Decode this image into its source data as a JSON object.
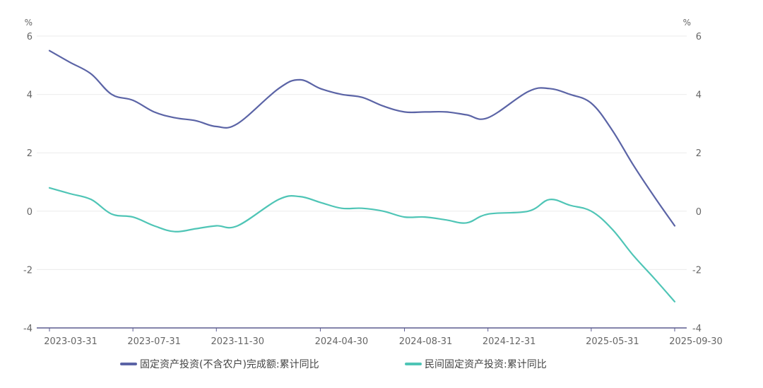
{
  "chart_data": {
    "type": "line",
    "y_unit_left": "%",
    "y_unit_right": "%",
    "ylim": [
      -4,
      6
    ],
    "yticks": [
      -4,
      -2,
      0,
      2,
      4,
      6
    ],
    "x_tick_labels": [
      "2023-03-31",
      "2023-07-31",
      "2023-11-30",
      "2024-04-30",
      "2024-08-31",
      "2024-12-31",
      "2025-05-31",
      "2025-09-30"
    ],
    "x": [
      "2023-03-31",
      "2023-04-30",
      "2023-05-31",
      "2023-06-30",
      "2023-07-31",
      "2023-08-31",
      "2023-09-30",
      "2023-10-31",
      "2023-11-30",
      "2023-12-31",
      "2024-02-29",
      "2024-03-31",
      "2024-04-30",
      "2024-05-31",
      "2024-06-30",
      "2024-07-31",
      "2024-08-31",
      "2024-09-30",
      "2024-10-31",
      "2024-11-30",
      "2024-12-31",
      "2025-02-28",
      "2025-03-31",
      "2025-04-30",
      "2025-05-31",
      "2025-06-30",
      "2025-07-31",
      "2025-08-31",
      "2025-09-30"
    ],
    "series": [
      {
        "name": "固定资产投资(不含农户)完成额:累计同比",
        "color": "#5b64a6",
        "values": [
          5.5,
          5.1,
          4.7,
          4.0,
          3.8,
          3.4,
          3.2,
          3.1,
          2.9,
          3.0,
          4.2,
          4.5,
          4.2,
          4.0,
          3.9,
          3.6,
          3.4,
          3.4,
          3.4,
          3.3,
          3.2,
          4.1,
          4.2,
          4.0,
          3.7,
          2.8,
          1.6,
          0.5,
          -0.5
        ]
      },
      {
        "name": "民间固定资产投资:累计同比",
        "color": "#4fc5b6",
        "values": [
          0.8,
          0.6,
          0.4,
          -0.1,
          -0.2,
          -0.5,
          -0.7,
          -0.6,
          -0.5,
          -0.5,
          0.4,
          0.5,
          0.3,
          0.1,
          0.1,
          0.0,
          -0.2,
          -0.2,
          -0.3,
          -0.4,
          -0.1,
          0.0,
          0.4,
          0.2,
          0.0,
          -0.6,
          -1.5,
          -2.3,
          -3.1
        ]
      }
    ],
    "grid": true,
    "legend_position": "bottom-center"
  }
}
